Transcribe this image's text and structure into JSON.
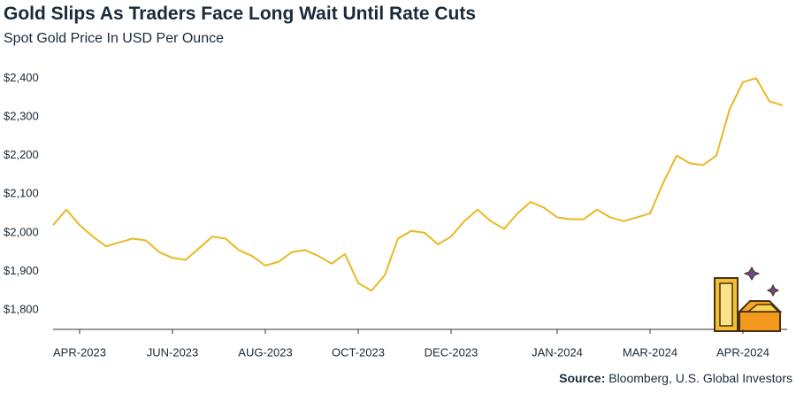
{
  "chart_data": {
    "type": "line",
    "title": "Gold Slips As Traders Face Long Wait Until Rate Cuts",
    "subtitle": "Spot Gold Price In USD Per Ounce",
    "source_label": "Source:",
    "source_text": "Bloomberg, U.S. Global Investors",
    "categories": [
      null,
      null,
      "APR-2023",
      null,
      null,
      null,
      null,
      null,
      null,
      "JUN-2023",
      null,
      null,
      null,
      null,
      null,
      null,
      "AUG-2023",
      null,
      null,
      null,
      null,
      null,
      null,
      "OCT-2023",
      null,
      null,
      null,
      null,
      null,
      null,
      "DEC-2023",
      null,
      null,
      null,
      null,
      null,
      null,
      null,
      "JAN-2024",
      null,
      null,
      null,
      null,
      null,
      null,
      "MAR-2024",
      null,
      null,
      null,
      null,
      null,
      null,
      "APR-2024",
      null,
      null,
      null
    ],
    "values": [
      2020,
      2060,
      2020,
      1990,
      1965,
      1975,
      1985,
      1980,
      1950,
      1935,
      1930,
      1960,
      1990,
      1985,
      1955,
      1940,
      1915,
      1925,
      1950,
      1955,
      1940,
      1920,
      1945,
      1870,
      1850,
      1890,
      1985,
      2005,
      2000,
      1970,
      1990,
      2030,
      2060,
      2030,
      2010,
      2050,
      2080,
      2065,
      2040,
      2035,
      2035,
      2060,
      2040,
      2030,
      2040,
      2050,
      2130,
      2200,
      2180,
      2175,
      2200,
      2320,
      2390,
      2400,
      2340,
      2330
    ],
    "color": "#e8b923",
    "ylim": [
      1750,
      2465
    ],
    "yticks": [
      {
        "value": 1800,
        "label": "$1,800"
      },
      {
        "value": 1900,
        "label": "$1,900"
      },
      {
        "value": 2000,
        "label": "$2,000"
      },
      {
        "value": 2100,
        "label": "$2,100"
      },
      {
        "value": 2200,
        "label": "$2,200"
      },
      {
        "value": 2300,
        "label": "$2,300"
      },
      {
        "value": 2400,
        "label": "$2,400"
      }
    ],
    "grid": false
  }
}
